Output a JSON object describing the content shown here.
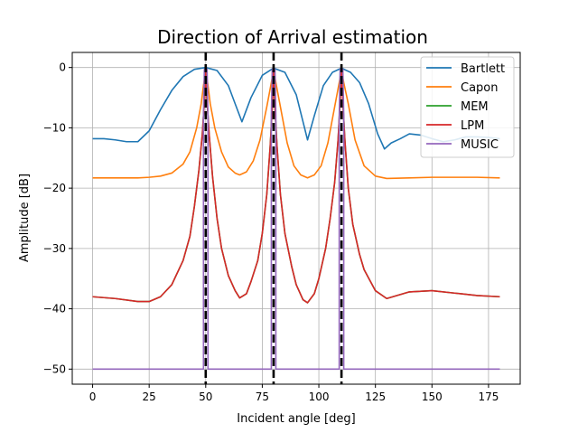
{
  "chart_data": {
    "type": "line",
    "title": "Direction of Arrival estimation",
    "xlabel": "Incident angle [deg]",
    "ylabel": "Amplitude [dB]",
    "xlim": [
      -9,
      189
    ],
    "ylim": [
      -52.5,
      2.5
    ],
    "xticks": [
      0,
      25,
      50,
      75,
      100,
      125,
      150,
      175
    ],
    "yticks": [
      0,
      -10,
      -20,
      -30,
      -40,
      -50
    ],
    "ytick_labels": [
      "0",
      "−10",
      "−20",
      "−30",
      "−40",
      "−50"
    ],
    "grid": true,
    "legend_position": "top-right",
    "true_angles": [
      50,
      80,
      110
    ],
    "true_angle_color": "#000000",
    "series": [
      {
        "name": "Bartlett",
        "color": "#1f77b4",
        "x": [
          0,
          5,
          10,
          15,
          20,
          25,
          30,
          35,
          40,
          45,
          50,
          55,
          60,
          63,
          66,
          70,
          75,
          80,
          85,
          90,
          93,
          95,
          98,
          102,
          106,
          110,
          114,
          118,
          122,
          126,
          129,
          132,
          136,
          140,
          145,
          150,
          155,
          160,
          165,
          170,
          175,
          180
        ],
        "y": [
          -11.8,
          -11.8,
          -12.0,
          -12.3,
          -12.3,
          -10.5,
          -7.0,
          -3.8,
          -1.5,
          -0.3,
          0.0,
          -0.5,
          -3.0,
          -6.0,
          -9.0,
          -5.0,
          -1.3,
          -0.1,
          -0.8,
          -4.5,
          -9.0,
          -12.0,
          -8.0,
          -3.0,
          -0.8,
          -0.1,
          -0.8,
          -2.5,
          -6.0,
          -11.0,
          -13.5,
          -12.5,
          -11.8,
          -11.0,
          -11.2,
          -11.8,
          -12.3,
          -12.0,
          -11.5,
          -11.5,
          -11.6,
          -11.8
        ]
      },
      {
        "name": "Capon",
        "color": "#ff7f0e",
        "x": [
          0,
          5,
          10,
          15,
          20,
          25,
          30,
          35,
          40,
          43,
          46,
          48,
          49,
          50,
          51,
          52,
          54,
          57,
          60,
          63,
          65,
          68,
          71,
          74,
          77,
          79,
          80,
          81,
          83,
          86,
          89,
          92,
          95,
          98,
          101,
          104,
          107,
          109,
          110,
          111,
          113,
          116,
          120,
          125,
          130,
          140,
          150,
          160,
          170,
          180
        ],
        "y": [
          -18.3,
          -18.3,
          -18.3,
          -18.3,
          -18.3,
          -18.2,
          -18.0,
          -17.5,
          -16.0,
          -14.0,
          -10.0,
          -6.0,
          -3.0,
          -0.5,
          -3.0,
          -6.0,
          -10.0,
          -14.0,
          -16.5,
          -17.5,
          -17.8,
          -17.3,
          -15.5,
          -12.0,
          -6.5,
          -2.5,
          -0.5,
          -2.5,
          -6.5,
          -12.5,
          -16.3,
          -17.8,
          -18.3,
          -17.8,
          -16.3,
          -12.5,
          -6.5,
          -2.5,
          -0.5,
          -2.5,
          -6.0,
          -12.0,
          -16.3,
          -18.0,
          -18.4,
          -18.3,
          -18.2,
          -18.2,
          -18.2,
          -18.3
        ]
      },
      {
        "name": "MEM",
        "color": "#2ca02c",
        "x": [
          0,
          10,
          20,
          25,
          30,
          35,
          40,
          43,
          45,
          47,
          48.5,
          49.5,
          50,
          50.5,
          51.5,
          53,
          55,
          57,
          60,
          63,
          65,
          68,
          70,
          73,
          75,
          77,
          78.5,
          79.5,
          80,
          80.5,
          81.5,
          83,
          85,
          88,
          90,
          93,
          95,
          98,
          100,
          103,
          105,
          107,
          108.5,
          109.5,
          110,
          110.5,
          111.5,
          113,
          115,
          118,
          120,
          125,
          130,
          140,
          150,
          160,
          170,
          180
        ],
        "y": [
          -38.0,
          -38.3,
          -38.8,
          -38.8,
          -38.0,
          -36.0,
          -32.0,
          -28.0,
          -23.0,
          -17.0,
          -11.0,
          -5.0,
          0.0,
          -5.0,
          -11.0,
          -18.0,
          -25.0,
          -30.0,
          -34.5,
          -37.0,
          -38.2,
          -37.5,
          -35.5,
          -32.0,
          -27.5,
          -21.0,
          -13.0,
          -6.0,
          0.0,
          -6.0,
          -13.0,
          -21.0,
          -27.5,
          -33.0,
          -36.0,
          -38.5,
          -39.0,
          -37.5,
          -35.0,
          -30.0,
          -25.0,
          -19.0,
          -12.0,
          -5.0,
          0.0,
          -5.0,
          -12.0,
          -20.0,
          -26.0,
          -31.0,
          -33.5,
          -37.0,
          -38.3,
          -37.2,
          -37.0,
          -37.4,
          -37.8,
          -38.0
        ]
      },
      {
        "name": "LPM",
        "color": "#d62728",
        "x": [
          0,
          10,
          20,
          25,
          30,
          35,
          40,
          43,
          45,
          47,
          48.5,
          49.5,
          50,
          50.5,
          51.5,
          53,
          55,
          57,
          60,
          63,
          65,
          68,
          70,
          73,
          75,
          77,
          78.5,
          79.5,
          80,
          80.5,
          81.5,
          83,
          85,
          88,
          90,
          93,
          95,
          98,
          100,
          103,
          105,
          107,
          108.5,
          109.5,
          110,
          110.5,
          111.5,
          113,
          115,
          118,
          120,
          125,
          130,
          140,
          150,
          160,
          170,
          180
        ],
        "y": [
          -38.0,
          -38.3,
          -38.8,
          -38.8,
          -38.0,
          -36.0,
          -32.0,
          -28.0,
          -23.0,
          -17.0,
          -11.0,
          -5.0,
          0.0,
          -5.0,
          -11.0,
          -18.0,
          -25.0,
          -30.0,
          -34.5,
          -37.0,
          -38.2,
          -37.5,
          -35.5,
          -32.0,
          -27.5,
          -21.0,
          -13.0,
          -6.0,
          0.0,
          -6.0,
          -13.0,
          -21.0,
          -27.5,
          -33.0,
          -36.0,
          -38.5,
          -39.0,
          -37.5,
          -35.0,
          -30.0,
          -25.0,
          -19.0,
          -12.0,
          -5.0,
          0.0,
          -5.0,
          -12.0,
          -20.0,
          -26.0,
          -31.0,
          -33.5,
          -37.0,
          -38.3,
          -37.2,
          -37.0,
          -37.4,
          -37.8,
          -38.0
        ]
      },
      {
        "name": "MUSIC",
        "color": "#9467bd",
        "x": [
          0,
          49,
          49,
          49.4,
          50,
          50.6,
          51,
          51,
          79,
          79,
          79.4,
          80,
          80.6,
          81,
          81,
          109,
          109,
          109.4,
          110,
          110.6,
          111,
          111,
          180
        ],
        "y": [
          -50,
          -50,
          -8,
          -0.3,
          0,
          -0.3,
          -8,
          -50,
          -50,
          -8,
          -0.3,
          0,
          -0.3,
          -8,
          -50,
          -50,
          -8,
          -0.3,
          0,
          -0.3,
          -8,
          -50,
          -50
        ]
      }
    ]
  }
}
